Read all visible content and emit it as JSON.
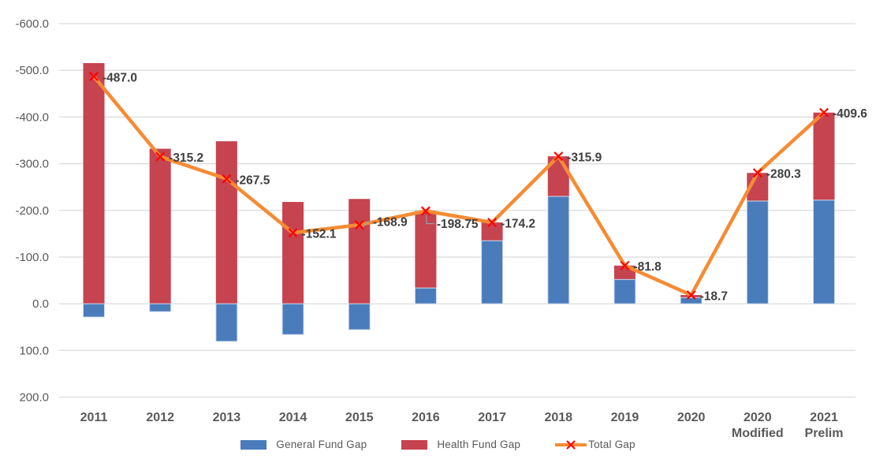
{
  "chart_data": {
    "type": "bar",
    "subtype": "stacked-bar-with-line-overlay",
    "title": "",
    "categories": [
      "2011",
      "2012",
      "2013",
      "2014",
      "2015",
      "2016",
      "2017",
      "2018",
      "2019",
      "2020",
      "2020\nModified",
      "2021\nPrelim"
    ],
    "series": [
      {
        "name": "General Fund Gap",
        "type": "bar",
        "color": "#4A7CBC",
        "values": [
          28.5,
          16.9,
          80.6,
          66.0,
          55.6,
          -33.8,
          -135.0,
          -230.0,
          -52.0,
          -13.2,
          -220.0,
          -222.0
        ]
      },
      {
        "name": "Health Fund Gap",
        "type": "bar",
        "color": "#C64350",
        "values": [
          -515.5,
          -332.1,
          -348.1,
          -218.1,
          -224.5,
          -164.95,
          -39.2,
          -85.9,
          -29.8,
          -5.5,
          -60.3,
          -187.6
        ]
      },
      {
        "name": "Total Gap",
        "type": "line",
        "color": "#F68B33",
        "marker": "x",
        "marker_color": "#FF0000",
        "values": [
          -487.0,
          -315.2,
          -267.5,
          -152.1,
          -168.9,
          -198.75,
          -174.2,
          -315.9,
          -81.8,
          -18.7,
          -280.3,
          -409.6
        ],
        "data_labels": [
          "-487.0",
          "-315.2",
          "-267.5",
          "-152.1",
          "-168.9",
          "-198.75",
          "-174.2",
          "-315.9",
          "-81.8",
          "-18.7",
          "-280.3",
          "-409.6"
        ]
      }
    ],
    "y_axis": {
      "inverted": true,
      "top_value": -600,
      "bottom_value": 200,
      "tick_step": 100,
      "tick_labels": [
        "-600.0",
        "-500.0",
        "-400.0",
        "-300.0",
        "-200.0",
        "-100.0",
        "0.0",
        "100.0",
        "200.0"
      ]
    },
    "grid": true,
    "legend_position": "bottom",
    "colors": {
      "gridline": "#dcdcdc",
      "axis_text": "#595959",
      "data_label_text": "#3f3f3f",
      "leader_line": "#9e9e9e"
    },
    "label_overrides": {
      "4": {
        "dx": 17,
        "dy": -4,
        "leader": "up"
      },
      "5": {
        "dx": 14,
        "dy": 16,
        "leader": "down"
      }
    }
  },
  "legend": {
    "general_label": "General Fund Gap",
    "health_label": "Health Fund Gap",
    "total_label": "Total Gap"
  }
}
